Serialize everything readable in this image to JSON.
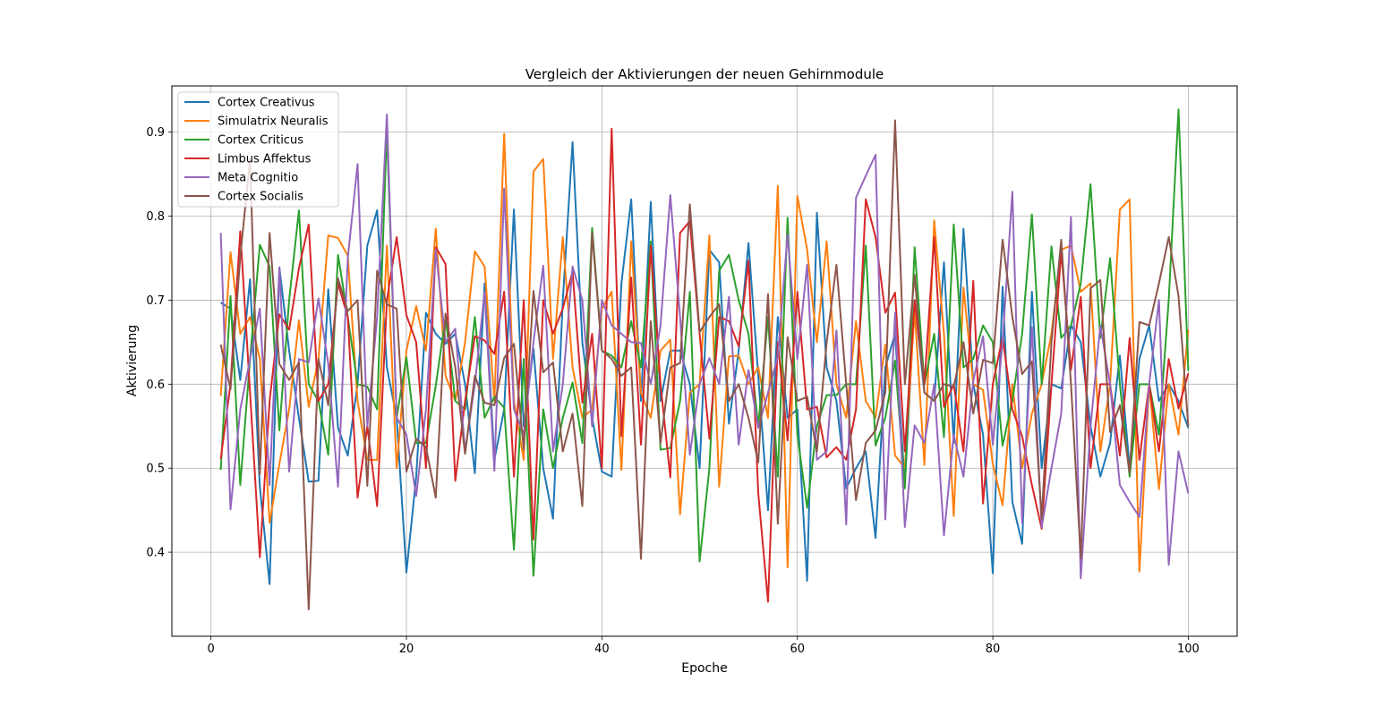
{
  "chart_data": {
    "type": "line",
    "title": "Vergleich der Aktivierungen der neuen Gehirnmodule",
    "xlabel": "Epoche",
    "ylabel": "Aktivierung",
    "xlim": [
      -4,
      105
    ],
    "ylim": [
      0.3,
      0.955
    ],
    "xticks": [
      0,
      20,
      40,
      60,
      80,
      100
    ],
    "yticks": [
      0.4,
      0.5,
      0.6,
      0.7,
      0.8,
      0.9
    ],
    "grid": true,
    "legend_position": "top-left",
    "x": [
      1,
      2,
      3,
      4,
      5,
      6,
      7,
      8,
      9,
      10,
      11,
      12,
      13,
      14,
      15,
      16,
      17,
      18,
      19,
      20,
      21,
      22,
      23,
      24,
      25,
      26,
      27,
      28,
      29,
      30,
      31,
      32,
      33,
      34,
      35,
      36,
      37,
      38,
      39,
      40,
      41,
      42,
      43,
      44,
      45,
      46,
      47,
      48,
      49,
      50,
      51,
      52,
      53,
      54,
      55,
      56,
      57,
      58,
      59,
      60,
      61,
      62,
      63,
      64,
      65,
      66,
      67,
      68,
      69,
      70,
      71,
      72,
      73,
      74,
      75,
      76,
      77,
      78,
      79,
      80,
      81,
      82,
      83,
      84,
      85,
      86,
      87,
      88,
      89,
      90,
      91,
      92,
      93,
      94,
      95,
      96,
      97,
      98,
      99,
      100
    ],
    "series": [
      {
        "name": "Cortex Creativus",
        "color": "#1f77b4",
        "values": [
          0.697,
          0.69,
          0.605,
          0.725,
          0.478,
          0.362,
          0.739,
          0.64,
          0.56,
          0.484,
          0.485,
          0.713,
          0.548,
          0.515,
          0.6,
          0.765,
          0.807,
          0.62,
          0.56,
          0.376,
          0.49,
          0.685,
          0.66,
          0.648,
          0.66,
          0.6,
          0.494,
          0.72,
          0.51,
          0.57,
          0.808,
          0.55,
          0.642,
          0.5,
          0.44,
          0.7,
          0.888,
          0.65,
          0.56,
          0.496,
          0.49,
          0.72,
          0.82,
          0.58,
          0.817,
          0.58,
          0.64,
          0.64,
          0.6,
          0.5,
          0.76,
          0.745,
          0.553,
          0.64,
          0.768,
          0.61,
          0.45,
          0.68,
          0.56,
          0.57,
          0.366,
          0.804,
          0.62,
          0.58,
          0.476,
          0.5,
          0.52,
          0.417,
          0.62,
          0.66,
          0.48,
          0.7,
          0.59,
          0.58,
          0.745,
          0.53,
          0.785,
          0.6,
          0.54,
          0.375,
          0.716,
          0.46,
          0.41,
          0.71,
          0.5,
          0.6,
          0.595,
          0.67,
          0.65,
          0.55,
          0.49,
          0.53,
          0.634,
          0.5,
          0.63,
          0.67,
          0.58,
          0.6,
          0.58,
          0.548
        ]
      },
      {
        "name": "Simulatrix Neuralis",
        "color": "#ff7f0e",
        "values": [
          0.586,
          0.757,
          0.66,
          0.68,
          0.63,
          0.435,
          0.505,
          0.57,
          0.676,
          0.573,
          0.63,
          0.777,
          0.774,
          0.753,
          0.58,
          0.51,
          0.51,
          0.765,
          0.5,
          0.64,
          0.693,
          0.64,
          0.785,
          0.61,
          0.58,
          0.65,
          0.758,
          0.74,
          0.58,
          0.898,
          0.58,
          0.51,
          0.853,
          0.868,
          0.63,
          0.775,
          0.62,
          0.56,
          0.57,
          0.69,
          0.71,
          0.498,
          0.77,
          0.59,
          0.56,
          0.64,
          0.653,
          0.445,
          0.59,
          0.6,
          0.777,
          0.478,
          0.633,
          0.634,
          0.6,
          0.62,
          0.56,
          0.836,
          0.382,
          0.824,
          0.76,
          0.65,
          0.77,
          0.6,
          0.56,
          0.675,
          0.58,
          0.56,
          0.647,
          0.515,
          0.5,
          0.688,
          0.504,
          0.795,
          0.66,
          0.443,
          0.715,
          0.6,
          0.593,
          0.505,
          0.456,
          0.6,
          0.5,
          0.565,
          0.6,
          0.66,
          0.76,
          0.765,
          0.71,
          0.72,
          0.52,
          0.6,
          0.808,
          0.82,
          0.377,
          0.6,
          0.475,
          0.6,
          0.54,
          0.665
        ]
      },
      {
        "name": "Cortex Criticus",
        "color": "#2ca02c",
        "values": [
          0.498,
          0.705,
          0.48,
          0.63,
          0.766,
          0.74,
          0.545,
          0.7,
          0.807,
          0.6,
          0.58,
          0.516,
          0.754,
          0.68,
          0.6,
          0.597,
          0.57,
          0.903,
          0.56,
          0.632,
          0.53,
          0.53,
          0.598,
          0.68,
          0.58,
          0.57,
          0.68,
          0.56,
          0.585,
          0.572,
          0.403,
          0.63,
          0.372,
          0.57,
          0.5,
          0.56,
          0.602,
          0.53,
          0.786,
          0.64,
          0.634,
          0.62,
          0.675,
          0.62,
          0.77,
          0.522,
          0.524,
          0.58,
          0.71,
          0.389,
          0.5,
          0.735,
          0.754,
          0.7,
          0.66,
          0.55,
          0.68,
          0.49,
          0.798,
          0.54,
          0.453,
          0.55,
          0.587,
          0.587,
          0.6,
          0.6,
          0.765,
          0.527,
          0.56,
          0.628,
          0.476,
          0.763,
          0.6,
          0.66,
          0.537,
          0.79,
          0.62,
          0.63,
          0.67,
          0.65,
          0.527,
          0.58,
          0.66,
          0.802,
          0.6,
          0.764,
          0.655,
          0.67,
          0.72,
          0.838,
          0.655,
          0.75,
          0.6,
          0.49,
          0.6,
          0.6,
          0.54,
          0.7,
          0.927,
          0.616
        ]
      },
      {
        "name": "Limbus Affektus",
        "color": "#d62728",
        "values": [
          0.511,
          0.6,
          0.782,
          0.59,
          0.394,
          0.58,
          0.683,
          0.665,
          0.738,
          0.79,
          0.58,
          0.6,
          0.72,
          0.68,
          0.465,
          0.55,
          0.455,
          0.699,
          0.775,
          0.682,
          0.65,
          0.5,
          0.763,
          0.743,
          0.485,
          0.58,
          0.657,
          0.652,
          0.636,
          0.71,
          0.49,
          0.7,
          0.415,
          0.7,
          0.66,
          0.69,
          0.734,
          0.578,
          0.66,
          0.5,
          0.904,
          0.538,
          0.727,
          0.528,
          0.765,
          0.6,
          0.489,
          0.78,
          0.794,
          0.66,
          0.535,
          0.68,
          0.675,
          0.645,
          0.747,
          0.47,
          0.341,
          0.65,
          0.533,
          0.71,
          0.57,
          0.573,
          0.513,
          0.525,
          0.51,
          0.57,
          0.82,
          0.775,
          0.685,
          0.709,
          0.52,
          0.7,
          0.6,
          0.775,
          0.573,
          0.6,
          0.52,
          0.723,
          0.458,
          0.6,
          0.656,
          0.57,
          0.538,
          0.48,
          0.428,
          0.6,
          0.758,
          0.617,
          0.704,
          0.5,
          0.6,
          0.6,
          0.515,
          0.655,
          0.51,
          0.6,
          0.52,
          0.63,
          0.571,
          0.613
        ]
      },
      {
        "name": "Meta Cognitio",
        "color": "#9467bd",
        "values": [
          0.78,
          0.451,
          0.57,
          0.63,
          0.69,
          0.48,
          0.739,
          0.496,
          0.63,
          0.626,
          0.702,
          0.624,
          0.478,
          0.75,
          0.862,
          0.55,
          0.68,
          0.921,
          0.56,
          0.54,
          0.467,
          0.57,
          0.76,
          0.65,
          0.666,
          0.52,
          0.6,
          0.71,
          0.497,
          0.833,
          0.57,
          0.54,
          0.65,
          0.741,
          0.52,
          0.6,
          0.74,
          0.7,
          0.55,
          0.7,
          0.67,
          0.66,
          0.65,
          0.649,
          0.6,
          0.67,
          0.825,
          0.68,
          0.516,
          0.6,
          0.631,
          0.6,
          0.704,
          0.528,
          0.617,
          0.548,
          0.59,
          0.633,
          0.778,
          0.63,
          0.742,
          0.51,
          0.52,
          0.664,
          0.433,
          0.822,
          0.848,
          0.873,
          0.439,
          0.685,
          0.43,
          0.551,
          0.53,
          0.6,
          0.42,
          0.54,
          0.49,
          0.604,
          0.657,
          0.528,
          0.65,
          0.829,
          0.435,
          0.668,
          0.43,
          0.5,
          0.565,
          0.799,
          0.369,
          0.55,
          0.67,
          0.6,
          0.48,
          0.46,
          0.442,
          0.6,
          0.7,
          0.385,
          0.52,
          0.47
        ]
      },
      {
        "name": "Cortex Socialis",
        "color": "#8c564b",
        "values": [
          0.647,
          0.594,
          0.752,
          0.868,
          0.493,
          0.78,
          0.624,
          0.605,
          0.626,
          0.332,
          0.63,
          0.575,
          0.726,
          0.687,
          0.7,
          0.479,
          0.735,
          0.695,
          0.69,
          0.496,
          0.535,
          0.525,
          0.465,
          0.684,
          0.62,
          0.517,
          0.61,
          0.578,
          0.575,
          0.631,
          0.648,
          0.522,
          0.711,
          0.614,
          0.626,
          0.52,
          0.565,
          0.455,
          0.78,
          0.64,
          0.63,
          0.61,
          0.62,
          0.392,
          0.675,
          0.53,
          0.62,
          0.625,
          0.814,
          0.662,
          0.68,
          0.695,
          0.58,
          0.6,
          0.56,
          0.507,
          0.707,
          0.434,
          0.656,
          0.58,
          0.585,
          0.52,
          0.65,
          0.742,
          0.6,
          0.462,
          0.53,
          0.545,
          0.59,
          0.914,
          0.6,
          0.73,
          0.59,
          0.58,
          0.6,
          0.597,
          0.65,
          0.565,
          0.629,
          0.625,
          0.772,
          0.68,
          0.612,
          0.627,
          0.44,
          0.65,
          0.772,
          0.6,
          0.393,
          0.714,
          0.724,
          0.543,
          0.575,
          0.495,
          0.674,
          0.67,
          0.72,
          0.775,
          0.705,
          0.55
        ]
      }
    ]
  }
}
